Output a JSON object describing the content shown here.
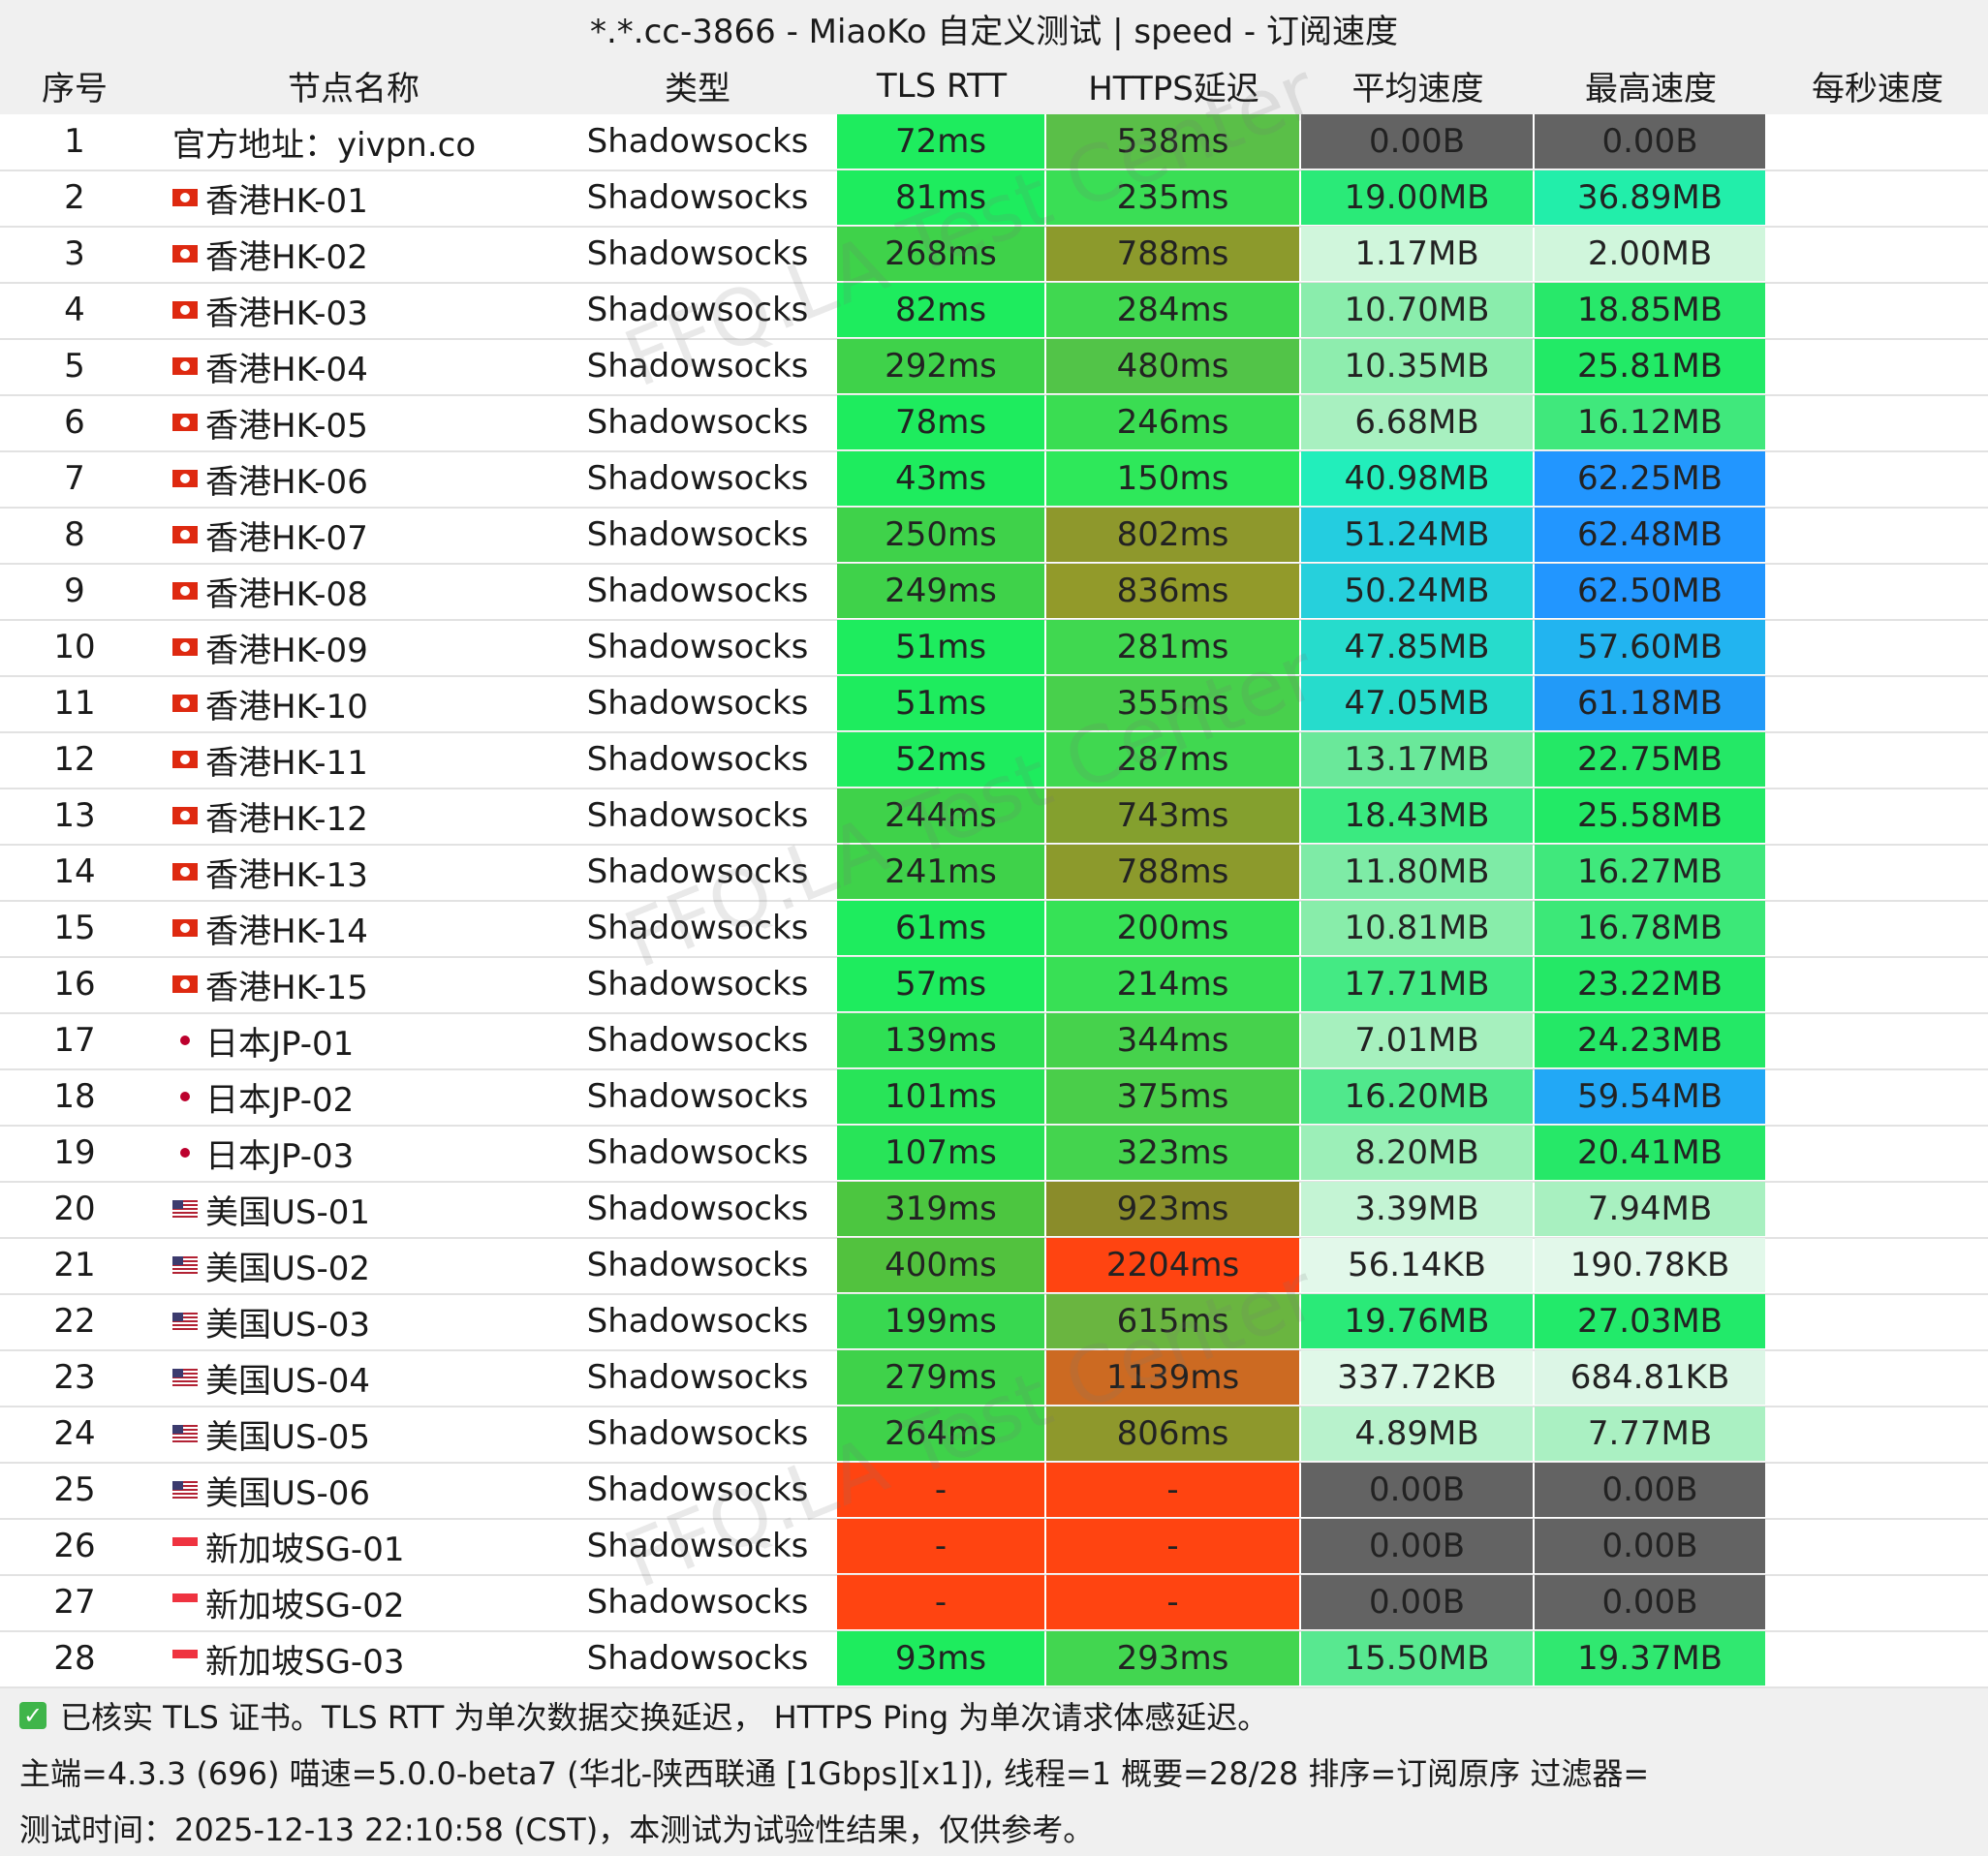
{
  "title": "*.*.cc-3866 - MiaoKo 自定义测试 | speed - 订阅速度",
  "headers": [
    "序号",
    "节点名称",
    "类型",
    "TLS RTT",
    "HTTPS延迟",
    "平均速度",
    "最高速度",
    "每秒速度"
  ],
  "rows": [
    {
      "no": 1,
      "name": "官方地址：yivpn.co",
      "type": "Shadowsocks",
      "tls": "72ms",
      "https": "538ms",
      "avg": "0.00B",
      "max": "0.00B",
      "colors": [
        "#1eec5e",
        "#5abf48",
        "#636363",
        "#636363"
      ]
    },
    {
      "no": 2,
      "name": "香港HK-01",
      "type": "Shadowsocks",
      "tls": "81ms",
      "https": "235ms",
      "avg": "19.00MB",
      "max": "36.89MB",
      "colors": [
        "#1eec5e",
        "#3ade55",
        "#2aea78",
        "#22eeaa"
      ]
    },
    {
      "no": 3,
      "name": "香港HK-02",
      "type": "Shadowsocks",
      "tls": "268ms",
      "https": "788ms",
      "avg": "1.17MB",
      "max": "2.00MB",
      "colors": [
        "#3fd24a",
        "#8c9a2c",
        "#d0f6dc",
        "#d0f6dc"
      ]
    },
    {
      "no": 4,
      "name": "香港HK-03",
      "type": "Shadowsocks",
      "tls": "82ms",
      "https": "284ms",
      "avg": "10.70MB",
      "max": "18.85MB",
      "colors": [
        "#1eec5e",
        "#40d850",
        "#8aedac",
        "#28e86a"
      ]
    },
    {
      "no": 5,
      "name": "香港HK-04",
      "type": "Shadowsocks",
      "tls": "292ms",
      "https": "480ms",
      "avg": "10.35MB",
      "max": "25.81MB",
      "colors": [
        "#3fd24a",
        "#52c448",
        "#8eedae",
        "#22ea66"
      ]
    },
    {
      "no": 6,
      "name": "香港HK-05",
      "type": "Shadowsocks",
      "tls": "78ms",
      "https": "246ms",
      "avg": "6.68MB",
      "max": "16.12MB",
      "colors": [
        "#1eec5e",
        "#3add52",
        "#a8f0c0",
        "#40e87c"
      ]
    },
    {
      "no": 7,
      "name": "香港HK-06",
      "type": "Shadowsocks",
      "tls": "43ms",
      "https": "150ms",
      "avg": "40.98MB",
      "max": "62.25MB",
      "colors": [
        "#1eec5e",
        "#2ee85a",
        "#22eebb",
        "#2296ff"
      ]
    },
    {
      "no": 8,
      "name": "香港HK-07",
      "type": "Shadowsocks",
      "tls": "250ms",
      "https": "802ms",
      "avg": "51.24MB",
      "max": "62.48MB",
      "colors": [
        "#3fd24a",
        "#8e982c",
        "#24cde0",
        "#2296ff"
      ]
    },
    {
      "no": 9,
      "name": "香港HK-08",
      "type": "Shadowsocks",
      "tls": "249ms",
      "https": "836ms",
      "avg": "50.24MB",
      "max": "62.50MB",
      "colors": [
        "#3fd24a",
        "#929a2a",
        "#26d0dc",
        "#2296ff"
      ]
    },
    {
      "no": 10,
      "name": "香港HK-09",
      "type": "Shadowsocks",
      "tls": "51ms",
      "https": "281ms",
      "avg": "47.85MB",
      "max": "57.60MB",
      "colors": [
        "#1eec5e",
        "#40d850",
        "#26dccc",
        "#22b4f0"
      ]
    },
    {
      "no": 11,
      "name": "香港HK-10",
      "type": "Shadowsocks",
      "tls": "51ms",
      "https": "355ms",
      "avg": "47.05MB",
      "max": "61.18MB",
      "colors": [
        "#1eec5e",
        "#48d04c",
        "#26dccc",
        "#229af8"
      ]
    },
    {
      "no": 12,
      "name": "香港HK-11",
      "type": "Shadowsocks",
      "tls": "52ms",
      "https": "287ms",
      "avg": "13.17MB",
      "max": "22.75MB",
      "colors": [
        "#1eec5e",
        "#40d850",
        "#6ae89a",
        "#24e866"
      ]
    },
    {
      "no": 13,
      "name": "香港HK-12",
      "type": "Shadowsocks",
      "tls": "244ms",
      "https": "743ms",
      "avg": "18.43MB",
      "max": "25.58MB",
      "colors": [
        "#3fd24a",
        "#84a02e",
        "#3aea80",
        "#22ea66"
      ]
    },
    {
      "no": 14,
      "name": "香港HK-13",
      "type": "Shadowsocks",
      "tls": "241ms",
      "https": "788ms",
      "avg": "11.80MB",
      "max": "16.27MB",
      "colors": [
        "#3fd24a",
        "#8c9a2c",
        "#7eeba6",
        "#40e87c"
      ]
    },
    {
      "no": 15,
      "name": "香港HK-14",
      "type": "Shadowsocks",
      "tls": "61ms",
      "https": "200ms",
      "avg": "10.81MB",
      "max": "16.78MB",
      "colors": [
        "#1eec5e",
        "#36e256",
        "#88edaa",
        "#3ce878"
      ]
    },
    {
      "no": 16,
      "name": "香港HK-15",
      "type": "Shadowsocks",
      "tls": "57ms",
      "https": "214ms",
      "avg": "17.71MB",
      "max": "23.22MB",
      "colors": [
        "#1eec5e",
        "#38e055",
        "#44ea84",
        "#24e866"
      ]
    },
    {
      "no": 17,
      "name": "日本JP-01",
      "type": "Shadowsocks",
      "tls": "139ms",
      "https": "344ms",
      "avg": "7.01MB",
      "max": "24.23MB",
      "colors": [
        "#2ee054",
        "#46d24c",
        "#a6f0be",
        "#24e866"
      ]
    },
    {
      "no": 18,
      "name": "日本JP-02",
      "type": "Shadowsocks",
      "tls": "101ms",
      "https": "375ms",
      "avg": "16.20MB",
      "max": "59.54MB",
      "colors": [
        "#28e458",
        "#4ace4a",
        "#50e88c",
        "#22a8f6"
      ]
    },
    {
      "no": 19,
      "name": "日本JP-03",
      "type": "Shadowsocks",
      "tls": "107ms",
      "https": "323ms",
      "avg": "8.20MB",
      "max": "20.41MB",
      "colors": [
        "#28e458",
        "#44d44e",
        "#9cefb8",
        "#26e868"
      ]
    },
    {
      "no": 20,
      "name": "美国US-01",
      "type": "Shadowsocks",
      "tls": "319ms",
      "https": "923ms",
      "avg": "3.39MB",
      "max": "7.94MB",
      "colors": [
        "#4cc640",
        "#8a8c2a",
        "#c4f4d4",
        "#a8f0c0"
      ]
    },
    {
      "no": 21,
      "name": "美国US-02",
      "type": "Shadowsocks",
      "tls": "400ms",
      "https": "2204ms",
      "avg": "56.14KB",
      "max": "190.78KB",
      "colors": [
        "#52c23e",
        "#ff4411",
        "#e2f8ea",
        "#e2f8ea"
      ]
    },
    {
      "no": 22,
      "name": "美国US-03",
      "type": "Shadowsocks",
      "tls": "199ms",
      "https": "615ms",
      "avg": "19.76MB",
      "max": "27.03MB",
      "colors": [
        "#38d850",
        "#6ab540",
        "#2aea78",
        "#22ea6a"
      ]
    },
    {
      "no": 23,
      "name": "美国US-04",
      "type": "Shadowsocks",
      "tls": "279ms",
      "https": "1139ms",
      "avg": "337.72KB",
      "max": "684.81KB",
      "colors": [
        "#3fd24a",
        "#cc6a22",
        "#e0f8e8",
        "#dcf6e6"
      ]
    },
    {
      "no": 24,
      "name": "美国US-05",
      "type": "Shadowsocks",
      "tls": "264ms",
      "https": "806ms",
      "avg": "4.89MB",
      "max": "7.77MB",
      "colors": [
        "#3fd24a",
        "#8e982c",
        "#b8f2cc",
        "#aaf0c2"
      ]
    },
    {
      "no": 25,
      "name": "美国US-06",
      "type": "Shadowsocks",
      "tls": "-",
      "https": "-",
      "avg": "0.00B",
      "max": "0.00B",
      "colors": [
        "#ff4411",
        "#ff4411",
        "#636363",
        "#636363"
      ]
    },
    {
      "no": 26,
      "name": "新加坡SG-01",
      "type": "Shadowsocks",
      "tls": "-",
      "https": "-",
      "avg": "0.00B",
      "max": "0.00B",
      "colors": [
        "#ff4411",
        "#ff4411",
        "#636363",
        "#636363"
      ]
    },
    {
      "no": 27,
      "name": "新加坡SG-02",
      "type": "Shadowsocks",
      "tls": "-",
      "https": "-",
      "avg": "0.00B",
      "max": "0.00B",
      "colors": [
        "#ff4411",
        "#ff4411",
        "#636363",
        "#636363"
      ]
    },
    {
      "no": 28,
      "name": "新加坡SG-03",
      "type": "Shadowsocks",
      "tls": "93ms",
      "https": "293ms",
      "avg": "15.50MB",
      "max": "19.37MB",
      "colors": [
        "#1eec5e",
        "#42d650",
        "#58e890",
        "#30e870"
      ]
    }
  ],
  "footer": {
    "note": "已核实 TLS 证书。TLS RTT 为单次数据交换延迟， HTTPS Ping 为单次请求体感延迟。",
    "info": "主端=4.3.3 (696) 喵速=5.0.0-beta7 (华北-陕西联通 [1Gbps][x1]), 线程=1 概要=28/28 排序=订阅原序 过滤器=",
    "time": "测试时间：2025-12-13 22:10:58 (CST)，本测试为试验性结果，仅供参考。"
  },
  "watermark": "FFQ.LA Test Center"
}
